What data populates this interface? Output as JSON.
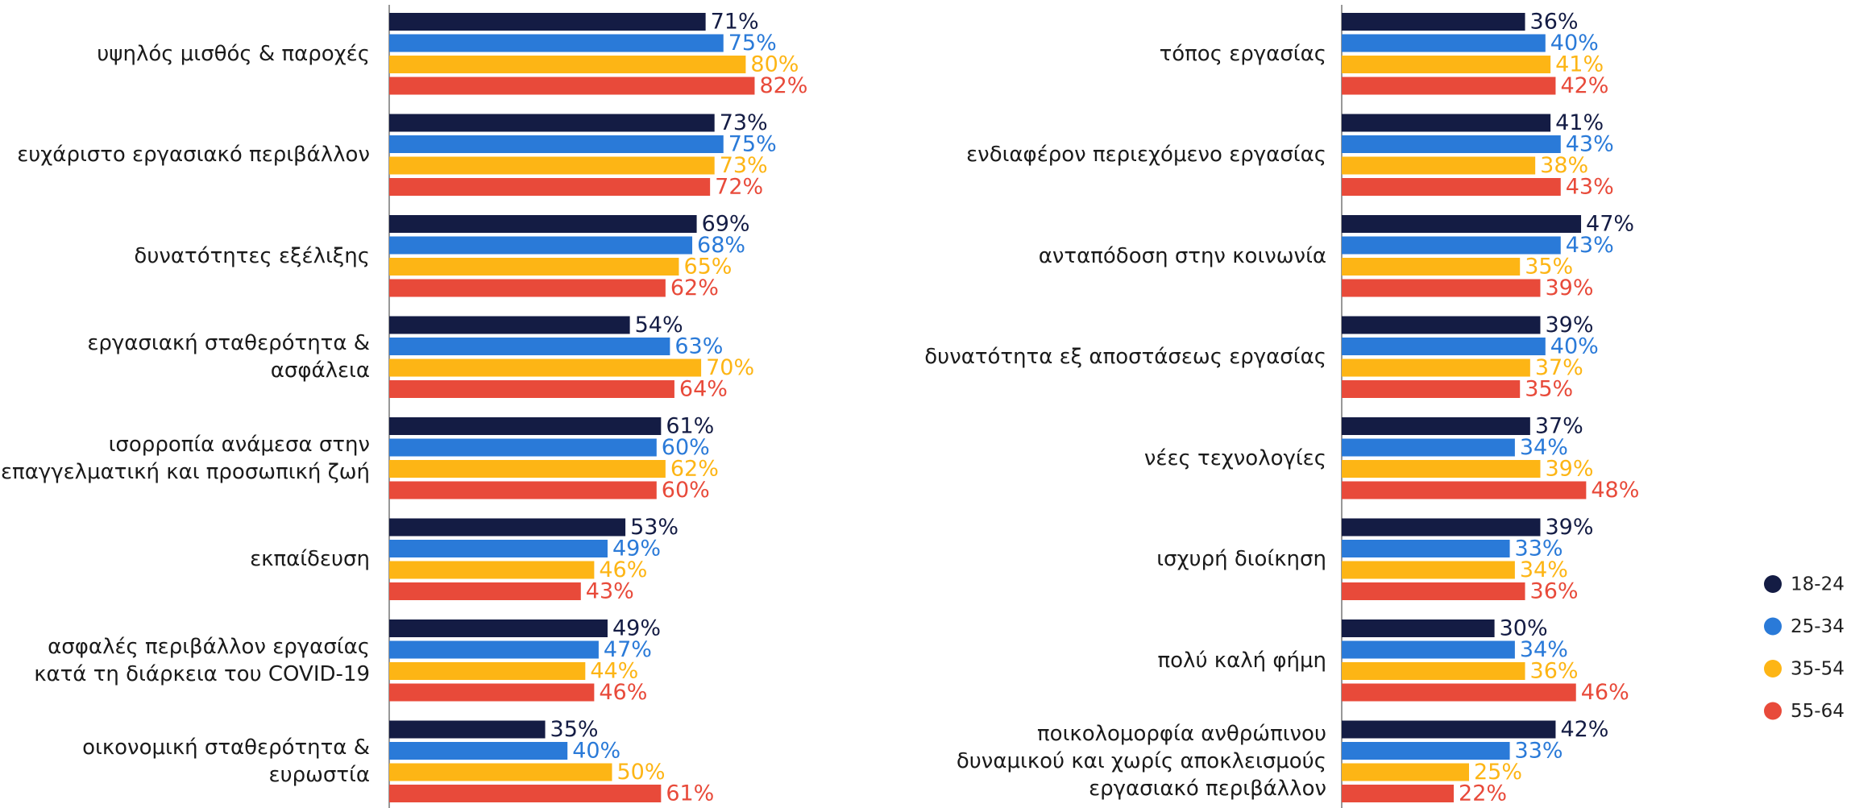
{
  "legend": [
    {
      "name": "18-24",
      "color": "#141c44"
    },
    {
      "name": "25-34",
      "color": "#2a7ad8"
    },
    {
      "name": "35-54",
      "color": "#fdb515"
    },
    {
      "name": "55-64",
      "color": "#e84a3a"
    }
  ],
  "chart_data": [
    {
      "type": "bar",
      "categories": [
        "υψηλός μισθός & παροχές",
        "ευχάριστο εργασιακό περιβάλλον",
        "δυνατότητες εξέλιξης",
        "εργασιακή σταθερότητα &\nασφάλεια",
        "ισορροπία ανάμεσα στην\nεπαγγελματική και προσωπική ζωή",
        "εκπαίδευση",
        "ασφαλές περιβάλλον εργασίας\nκατά τη διάρκεια του COVID-19",
        "οικονομική σταθερότητα &\nευρωστία"
      ],
      "series": [
        {
          "color": "#141c44",
          "values": [
            71,
            73,
            69,
            54,
            61,
            53,
            49,
            35
          ],
          "value_labels": [
            "71%",
            "73%",
            "69%",
            "54%",
            "61%",
            "53%",
            "49%",
            "35%"
          ]
        },
        {
          "color": "#2a7ad8",
          "values": [
            75,
            75,
            68,
            63,
            60,
            49,
            47,
            40
          ],
          "value_labels": [
            "75%",
            "75%",
            "68%",
            "63%",
            "60%",
            "49%",
            "47%",
            "40%"
          ]
        },
        {
          "color": "#fdb515",
          "values": [
            80,
            73,
            65,
            70,
            62,
            46,
            44,
            50
          ],
          "value_labels": [
            "80%",
            "73%",
            "65%",
            "70%",
            "62%",
            "46%",
            "44%",
            "50%"
          ]
        },
        {
          "color": "#e84a3a",
          "values": [
            82,
            72,
            62,
            64,
            60,
            43,
            46,
            61
          ],
          "value_labels": [
            "82%",
            "72%",
            "62%",
            "64%",
            "60%",
            "43%",
            "46%",
            "61%"
          ]
        }
      ]
    },
    {
      "type": "bar",
      "categories": [
        "τόπος εργασίας",
        "ενδιαφέρον περιεχόμενο εργασίας",
        "ανταπόδοση στην κοινωνία",
        "δυνατότητα εξ αποστάσεως εργασίας",
        "νέες τεχνολογίες",
        "ισχυρή διοίκηση",
        "πολύ καλή φήμη",
        "ποικολομορφία ανθρώπινου\nδυναμικού και χωρίς αποκλεισμούς\nεργασιακό περιβάλλον"
      ],
      "series": [
        {
          "color": "#141c44",
          "values": [
            36,
            41,
            47,
            39,
            37,
            39,
            30,
            42
          ],
          "value_labels": [
            "36%",
            "41%",
            "47%",
            "39%",
            "37%",
            "39%",
            "30%",
            "42%"
          ]
        },
        {
          "color": "#2a7ad8",
          "values": [
            40,
            43,
            43,
            40,
            34,
            33,
            34,
            33
          ],
          "value_labels": [
            "40%",
            "43%",
            "43%",
            "40%",
            "34%",
            "33%",
            "34%",
            "33%"
          ]
        },
        {
          "color": "#fdb515",
          "values": [
            41,
            38,
            35,
            37,
            39,
            34,
            36,
            25
          ],
          "value_labels": [
            "41%",
            "38%",
            "35%",
            "37%",
            "39%",
            "34%",
            "36%",
            "25%"
          ]
        },
        {
          "color": "#e84a3a",
          "values": [
            42,
            43,
            39,
            35,
            48,
            36,
            46,
            22
          ],
          "value_labels": [
            "42%",
            "43%",
            "39%",
            "35%",
            "48%",
            "36%",
            "46%",
            "22%"
          ]
        }
      ]
    }
  ]
}
